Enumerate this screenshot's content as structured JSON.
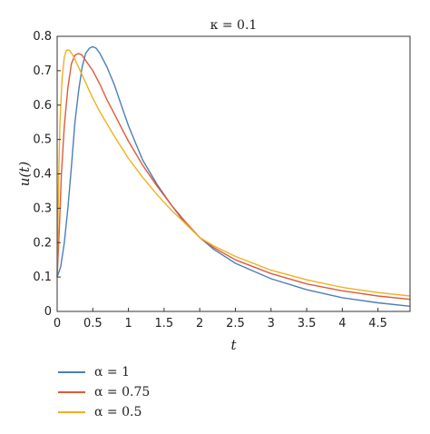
{
  "chart_data": {
    "type": "line",
    "title": "κ = 0.1",
    "xlabel": "t",
    "ylabel": "u(t)",
    "xlim": [
      0,
      4.95
    ],
    "ylim": [
      0,
      0.8
    ],
    "xticks": [
      0,
      0.5,
      1,
      1.5,
      2,
      2.5,
      3,
      3.5,
      4,
      4.5
    ],
    "xtick_labels": [
      "0",
      "0.5",
      "1",
      "1.5",
      "2",
      "2.5",
      "3",
      "3.5",
      "4",
      "4.5"
    ],
    "yticks": [
      0,
      0.1,
      0.2,
      0.3,
      0.4,
      0.5,
      0.6,
      0.7,
      0.8
    ],
    "ytick_labels": [
      "0",
      "0.1",
      "0.2",
      "0.3",
      "0.4",
      "0.5",
      "0.6",
      "0.7",
      "0.8"
    ],
    "grid": false,
    "legend_position": "below-left",
    "series": [
      {
        "name": "α = 1",
        "color": "#4a7ebb",
        "points": [
          [
            0,
            0.1
          ],
          [
            0.05,
            0.13
          ],
          [
            0.1,
            0.2
          ],
          [
            0.15,
            0.3
          ],
          [
            0.2,
            0.42
          ],
          [
            0.25,
            0.55
          ],
          [
            0.3,
            0.64
          ],
          [
            0.35,
            0.71
          ],
          [
            0.4,
            0.75
          ],
          [
            0.45,
            0.765
          ],
          [
            0.5,
            0.77
          ],
          [
            0.55,
            0.765
          ],
          [
            0.6,
            0.75
          ],
          [
            0.7,
            0.71
          ],
          [
            0.8,
            0.66
          ],
          [
            0.9,
            0.6
          ],
          [
            1.0,
            0.54
          ],
          [
            1.1,
            0.49
          ],
          [
            1.2,
            0.44
          ],
          [
            1.4,
            0.37
          ],
          [
            1.6,
            0.31
          ],
          [
            1.8,
            0.255
          ],
          [
            2.0,
            0.215
          ],
          [
            2.2,
            0.18
          ],
          [
            2.5,
            0.14
          ],
          [
            3.0,
            0.095
          ],
          [
            3.5,
            0.063
          ],
          [
            4.0,
            0.04
          ],
          [
            4.5,
            0.025
          ],
          [
            4.95,
            0.015
          ]
        ]
      },
      {
        "name": "α = 0.75",
        "color": "#e05a3a",
        "points": [
          [
            0,
            0.1
          ],
          [
            0.03,
            0.24
          ],
          [
            0.06,
            0.4
          ],
          [
            0.1,
            0.54
          ],
          [
            0.15,
            0.65
          ],
          [
            0.2,
            0.72
          ],
          [
            0.25,
            0.745
          ],
          [
            0.3,
            0.75
          ],
          [
            0.35,
            0.745
          ],
          [
            0.4,
            0.73
          ],
          [
            0.5,
            0.7
          ],
          [
            0.6,
            0.66
          ],
          [
            0.7,
            0.615
          ],
          [
            0.8,
            0.575
          ],
          [
            0.9,
            0.535
          ],
          [
            1.0,
            0.495
          ],
          [
            1.2,
            0.425
          ],
          [
            1.4,
            0.365
          ],
          [
            1.6,
            0.31
          ],
          [
            1.8,
            0.26
          ],
          [
            2.0,
            0.215
          ],
          [
            2.2,
            0.185
          ],
          [
            2.5,
            0.15
          ],
          [
            3.0,
            0.11
          ],
          [
            3.5,
            0.08
          ],
          [
            4.0,
            0.06
          ],
          [
            4.5,
            0.045
          ],
          [
            4.95,
            0.035
          ]
        ]
      },
      {
        "name": "α = 0.5",
        "color": "#f0b020",
        "points": [
          [
            0,
            0.1
          ],
          [
            0.02,
            0.38
          ],
          [
            0.04,
            0.55
          ],
          [
            0.07,
            0.68
          ],
          [
            0.1,
            0.74
          ],
          [
            0.13,
            0.76
          ],
          [
            0.17,
            0.76
          ],
          [
            0.22,
            0.745
          ],
          [
            0.3,
            0.71
          ],
          [
            0.4,
            0.665
          ],
          [
            0.5,
            0.62
          ],
          [
            0.6,
            0.58
          ],
          [
            0.8,
            0.51
          ],
          [
            1.0,
            0.445
          ],
          [
            1.2,
            0.39
          ],
          [
            1.4,
            0.34
          ],
          [
            1.6,
            0.295
          ],
          [
            1.8,
            0.255
          ],
          [
            2.0,
            0.215
          ],
          [
            2.2,
            0.19
          ],
          [
            2.5,
            0.16
          ],
          [
            3.0,
            0.12
          ],
          [
            3.5,
            0.092
          ],
          [
            4.0,
            0.07
          ],
          [
            4.5,
            0.055
          ],
          [
            4.95,
            0.045
          ]
        ]
      }
    ]
  }
}
